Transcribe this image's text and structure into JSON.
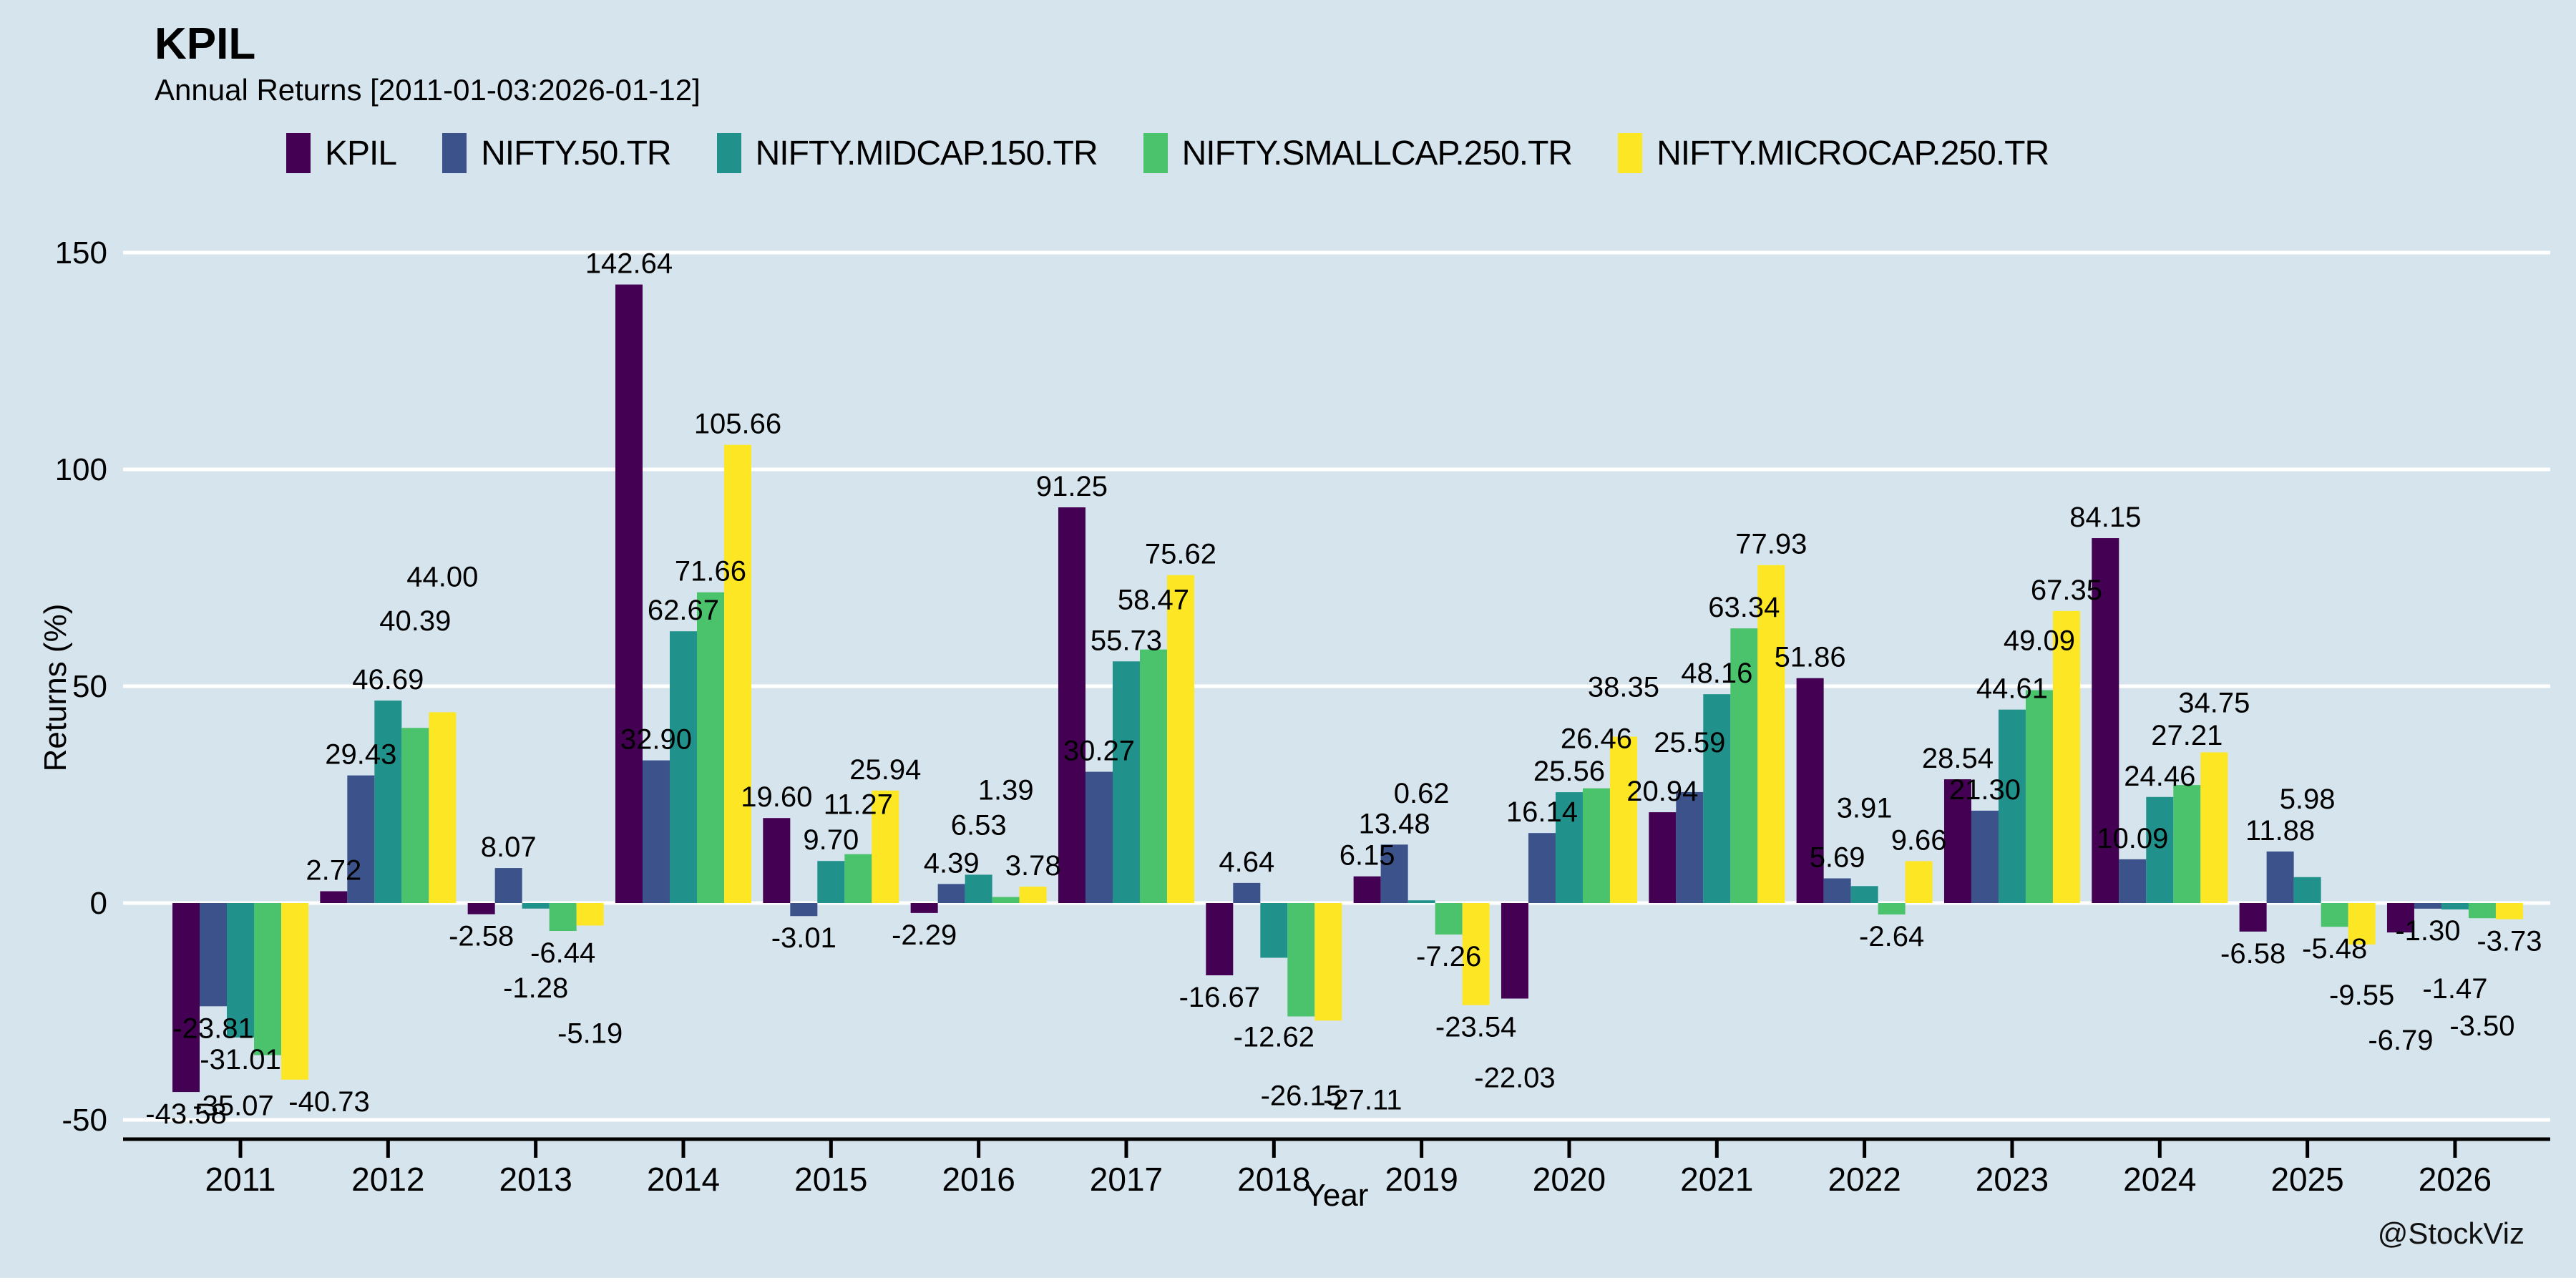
{
  "header": {
    "title": "KPIL",
    "subtitle": "Annual Returns [2011-01-03:2026-01-12]"
  },
  "watermark": "@StockViz",
  "colors": {
    "background": "#d6e4ed",
    "grid": "#ffffff",
    "axis": "#000000",
    "text": "#000000"
  },
  "chart_data": {
    "type": "bar",
    "title": "KPIL",
    "subtitle": "Annual Returns [2011-01-03:2026-01-12]",
    "xlabel": "Year",
    "ylabel": "Returns (%)",
    "ylim": [
      -50,
      150
    ],
    "yticks": [
      150,
      100,
      50,
      0,
      -50
    ],
    "grid": true,
    "legend_position": "top",
    "value_labels": true,
    "value_label_format": "2-decimals",
    "categories": [
      "2011",
      "2012",
      "2013",
      "2014",
      "2015",
      "2016",
      "2017",
      "2018",
      "2019",
      "2020",
      "2021",
      "2022",
      "2023",
      "2024",
      "2025",
      "2026"
    ],
    "series": [
      {
        "name": "KPIL",
        "color": "#440154",
        "values": [
          -43.58,
          2.72,
          -2.58,
          142.64,
          19.6,
          -2.29,
          91.25,
          -16.67,
          6.15,
          -22.03,
          20.94,
          51.86,
          28.54,
          84.15,
          -6.58,
          -6.79
        ]
      },
      {
        "name": "NIFTY.50.TR",
        "color": "#3b528b",
        "values": [
          -23.81,
          29.43,
          8.07,
          32.9,
          -3.01,
          4.39,
          30.27,
          4.64,
          13.48,
          16.14,
          25.59,
          5.69,
          21.3,
          10.09,
          11.88,
          -1.3
        ]
      },
      {
        "name": "NIFTY.MIDCAP.150.TR",
        "color": "#21918c",
        "values": [
          -31.01,
          46.69,
          -1.28,
          62.67,
          9.7,
          6.53,
          55.73,
          -12.62,
          0.62,
          25.56,
          48.16,
          3.91,
          44.61,
          24.46,
          5.98,
          -1.47
        ]
      },
      {
        "name": "NIFTY.SMALLCAP.250.TR",
        "color": "#4bc26c",
        "values": [
          -35.07,
          40.39,
          -6.44,
          71.66,
          11.27,
          1.39,
          58.47,
          -26.15,
          -7.26,
          26.46,
          63.34,
          -2.64,
          49.09,
          27.21,
          -5.48,
          -3.5
        ]
      },
      {
        "name": "NIFTY.MICROCAP.250.TR",
        "color": "#fde725",
        "values": [
          -40.73,
          44.0,
          -5.19,
          105.66,
          25.94,
          3.78,
          75.62,
          -27.11,
          -23.54,
          38.35,
          77.93,
          9.66,
          67.35,
          34.75,
          -9.55,
          -3.73
        ]
      }
    ]
  }
}
